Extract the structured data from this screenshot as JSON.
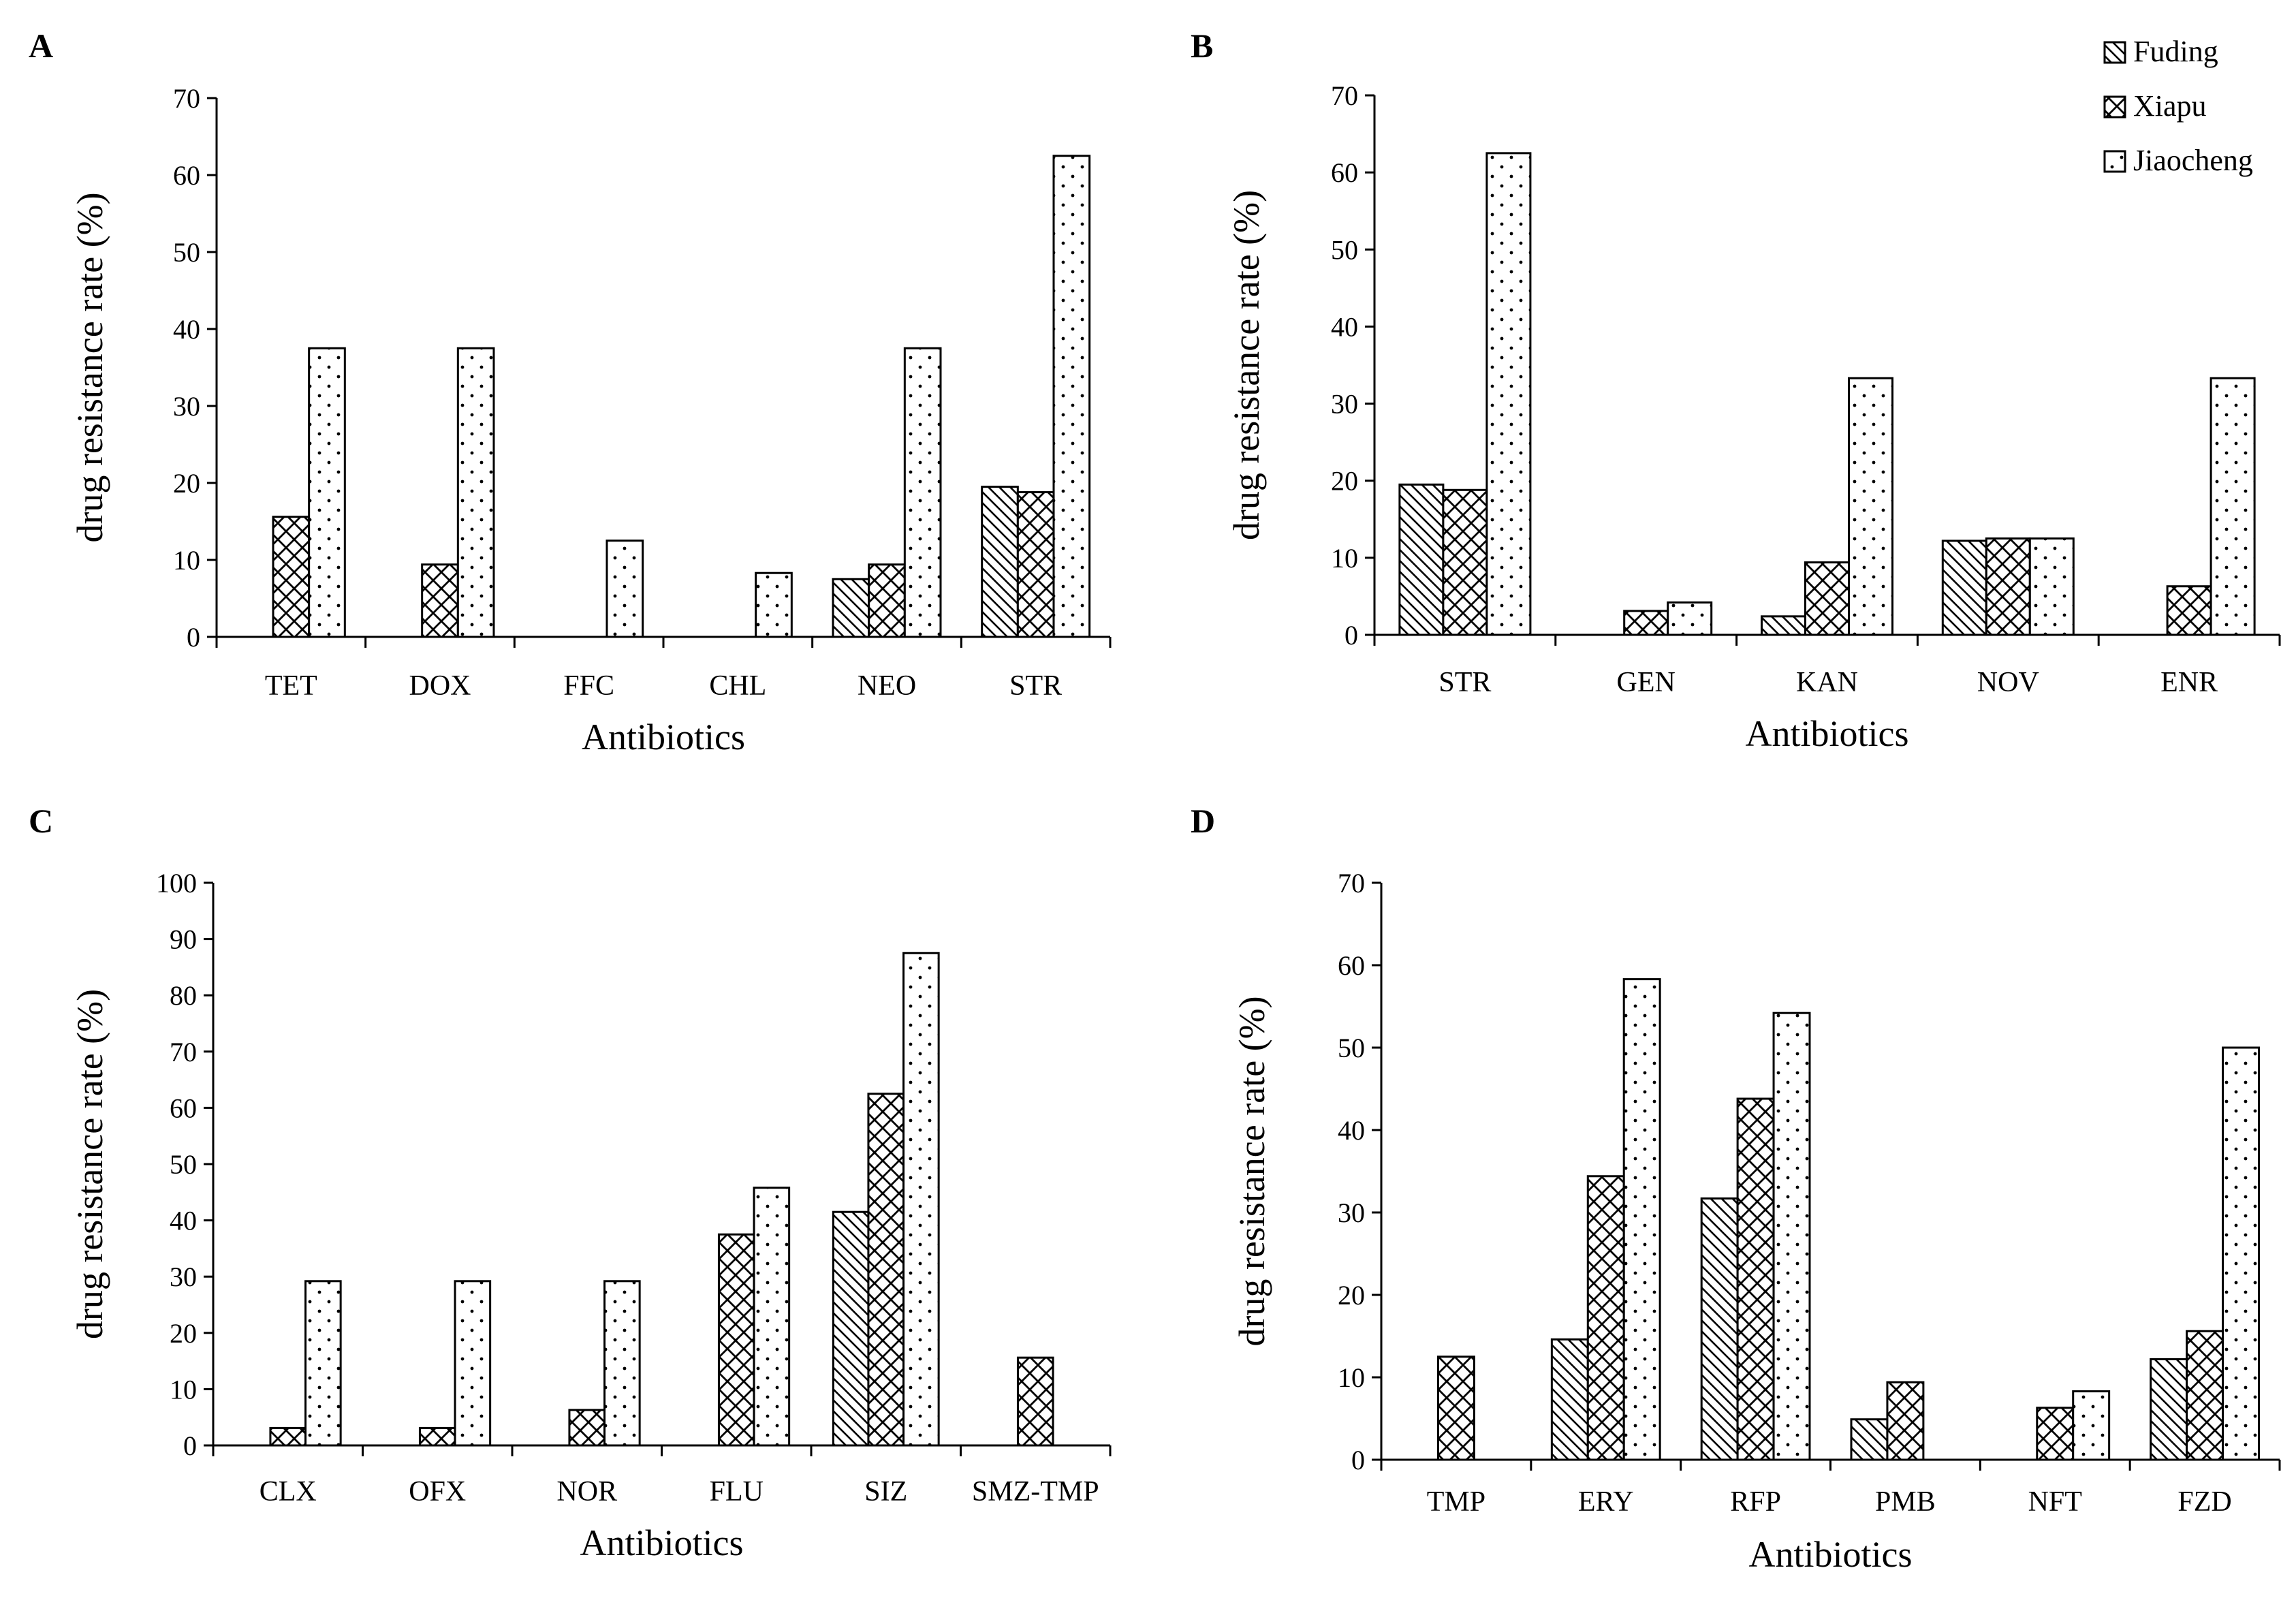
{
  "legend": [
    {
      "name": "Fuding",
      "pattern": "diagonal"
    },
    {
      "name": "Xiapu",
      "pattern": "crosshatch"
    },
    {
      "name": "Jiaocheng",
      "pattern": "dots"
    }
  ],
  "chart_data": [
    {
      "panel": "A",
      "type": "bar",
      "xlabel": "Antibiotics",
      "ylabel": "drug resistance rate (%)",
      "ylim": [
        0,
        70
      ],
      "yticks": [
        0,
        10,
        20,
        30,
        40,
        50,
        60,
        70
      ],
      "categories": [
        "TET",
        "DOX",
        "FFC",
        "CHL",
        "NEO",
        "STR"
      ],
      "series": [
        {
          "name": "Fuding",
          "values": [
            0,
            0,
            0,
            0,
            7.5,
            19.5
          ]
        },
        {
          "name": "Xiapu",
          "values": [
            15.6,
            9.4,
            0,
            0,
            9.4,
            18.8
          ]
        },
        {
          "name": "Jiaocheng",
          "values": [
            37.5,
            37.5,
            12.5,
            8.3,
            37.5,
            62.5
          ]
        }
      ]
    },
    {
      "panel": "B",
      "type": "bar",
      "xlabel": "Antibiotics",
      "ylabel": "drug resistance rate (%)",
      "ylim": [
        0,
        70
      ],
      "yticks": [
        0,
        10,
        20,
        30,
        40,
        50,
        60,
        70
      ],
      "categories": [
        "STR",
        "GEN",
        "KAN",
        "NOV",
        "ENR"
      ],
      "series": [
        {
          "name": "Fuding",
          "values": [
            19.5,
            0,
            2.4,
            12.2,
            0
          ]
        },
        {
          "name": "Xiapu",
          "values": [
            18.8,
            3.1,
            9.4,
            12.5,
            6.3
          ]
        },
        {
          "name": "Jiaocheng",
          "values": [
            62.5,
            4.2,
            33.3,
            12.5,
            33.3
          ]
        }
      ]
    },
    {
      "panel": "C",
      "type": "bar",
      "xlabel": "Antibiotics",
      "ylabel": "drug resistance rate (%)",
      "ylim": [
        0,
        100
      ],
      "yticks": [
        0,
        10,
        20,
        30,
        40,
        50,
        60,
        70,
        80,
        90,
        100
      ],
      "categories": [
        "CLX",
        "OFX",
        "NOR",
        "FLU",
        "SIZ",
        "SMZ-TMP"
      ],
      "series": [
        {
          "name": "Fuding",
          "values": [
            0,
            0,
            0,
            0,
            41.5,
            0
          ]
        },
        {
          "name": "Xiapu",
          "values": [
            3.1,
            3.1,
            6.3,
            37.5,
            62.5,
            15.6
          ]
        },
        {
          "name": "Jiaocheng",
          "values": [
            29.2,
            29.2,
            29.2,
            45.8,
            87.5,
            0
          ]
        }
      ]
    },
    {
      "panel": "D",
      "type": "bar",
      "xlabel": "Antibiotics",
      "ylabel": "drug resistance rate (%)",
      "ylim": [
        0,
        70
      ],
      "yticks": [
        0,
        10,
        20,
        30,
        40,
        50,
        60,
        70
      ],
      "categories": [
        "TMP",
        "ERY",
        "RFP",
        "PMB",
        "NFT",
        "FZD"
      ],
      "series": [
        {
          "name": "Fuding",
          "values": [
            0,
            14.6,
            31.7,
            4.9,
            0,
            12.2
          ]
        },
        {
          "name": "Xiapu",
          "values": [
            12.5,
            34.4,
            43.8,
            9.4,
            6.3,
            15.6
          ]
        },
        {
          "name": "Jiaocheng",
          "values": [
            0,
            58.3,
            54.2,
            0,
            8.3,
            50.0
          ]
        }
      ]
    }
  ]
}
